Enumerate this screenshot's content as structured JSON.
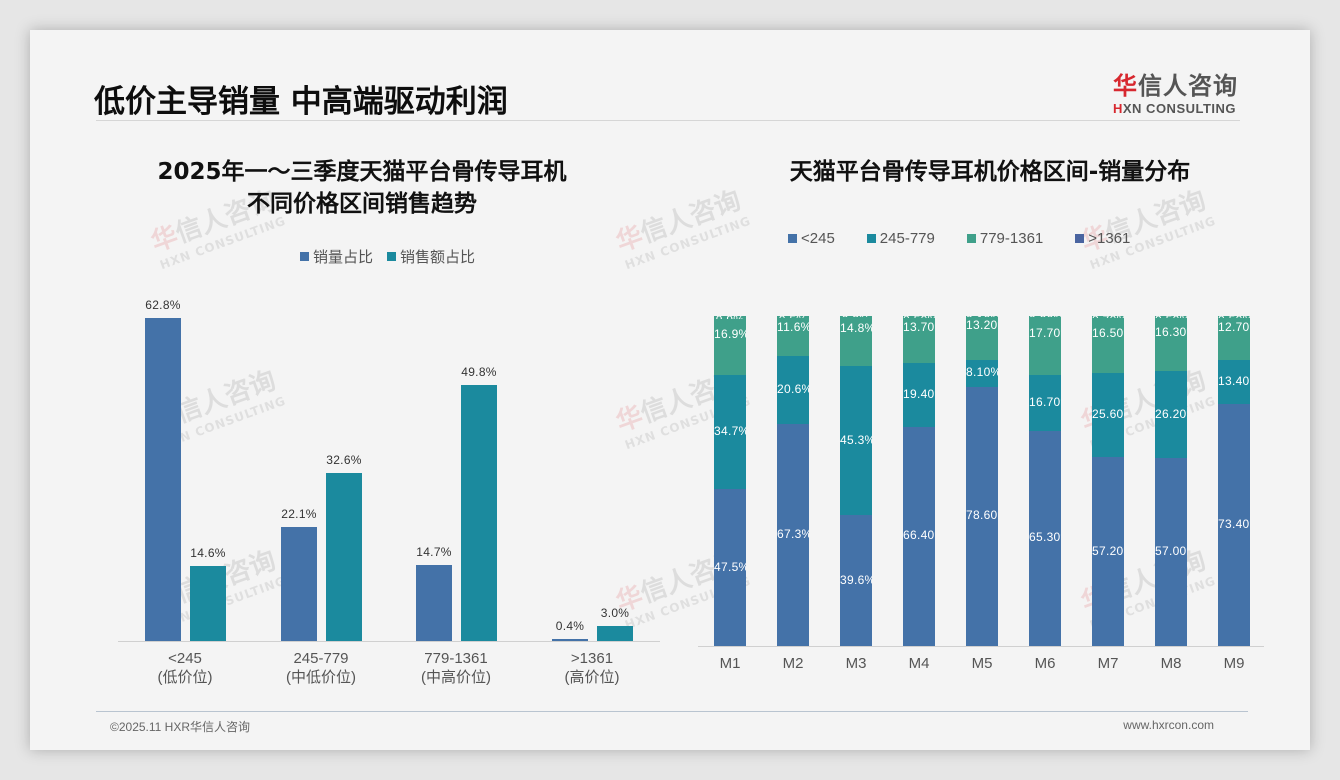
{
  "header": {
    "title": "低价主导销量 中高端驱动利润",
    "logo_cn_first": "华",
    "logo_cn_rest": "信人咨询",
    "logo_en_first": "H",
    "logo_en_rest": "XN CONSULTING"
  },
  "watermark": {
    "cn_first": "华",
    "cn_rest": "信人咨询",
    "en": "HXN CONSULTING"
  },
  "colors": {
    "volume": "#4472a8",
    "revenue": "#1b8a9e",
    "lt245": "#4472a8",
    "r245_779": "#1b8a9e",
    "r779_1361": "#3fa08a",
    "gt1361": "#4a64a0"
  },
  "left_chart": {
    "title_line1": "2025年一～三季度天猫平台骨传导耳机",
    "title_line2": "不同价格区间销售趋势",
    "legend": [
      "销量占比",
      "销售额占比"
    ]
  },
  "right_chart": {
    "title": "天猫平台骨传导耳机价格区间-销量分布",
    "legend": [
      "<245",
      "245-779",
      "779-1361",
      ">1361"
    ]
  },
  "chart_data": [
    {
      "type": "bar",
      "title": "2025年一～三季度天猫平台骨传导耳机不同价格区间销售趋势",
      "categories": [
        "<245 (低价位)",
        "245-779 (中低价位)",
        "779-1361 (中高价位)",
        ">1361 (高价位)"
      ],
      "category_lines": [
        [
          "<245",
          "(低价位)"
        ],
        [
          "245-779",
          "(中低价位)"
        ],
        [
          "779-1361",
          "(中高价位)"
        ],
        [
          ">1361",
          "(高价位)"
        ]
      ],
      "series": [
        {
          "name": "销量占比",
          "values": [
            62.8,
            22.1,
            14.7,
            0.4
          ],
          "labels": [
            "62.8%",
            "22.1%",
            "14.7%",
            "0.4%"
          ]
        },
        {
          "name": "销售额占比",
          "values": [
            14.6,
            32.6,
            49.8,
            3.0
          ],
          "labels": [
            "14.6%",
            "32.6%",
            "49.8%",
            "3.0%"
          ]
        }
      ],
      "xlabel": "",
      "ylabel": "",
      "ylim": [
        0,
        65
      ],
      "grid": false,
      "legend_position": "top"
    },
    {
      "type": "bar",
      "stacked": true,
      "title": "天猫平台骨传导耳机价格区间-销量分布",
      "categories": [
        "M1",
        "M2",
        "M3",
        "M4",
        "M5",
        "M6",
        "M7",
        "M8",
        "M9"
      ],
      "series": [
        {
          "name": "<245",
          "values": [
            47.5,
            67.3,
            39.6,
            66.4,
            78.6,
            65.3,
            57.2,
            57.0,
            73.4
          ],
          "labels": [
            "47.5%",
            "67.3%",
            "39.6%",
            "66.40%",
            "78.60%",
            "65.30%",
            "57.20%",
            "57.00%",
            "73.40%"
          ]
        },
        {
          "name": "245-779",
          "values": [
            34.7,
            20.6,
            45.3,
            19.4,
            8.1,
            16.7,
            25.6,
            26.2,
            13.4
          ],
          "labels": [
            "34.7%",
            "20.6%",
            "45.3%",
            "19.40%",
            "8.10%",
            "16.70%",
            "25.60%",
            "26.20%",
            "13.40%"
          ]
        },
        {
          "name": "779-1361",
          "values": [
            16.9,
            11.6,
            14.8,
            13.7,
            13.2,
            17.7,
            16.5,
            16.3,
            12.7
          ],
          "labels": [
            "16.9%",
            "11.6%",
            "14.8%",
            "13.70%",
            "13.20%",
            "17.70%",
            "16.50%",
            "16.30%",
            "12.70%"
          ]
        },
        {
          "name": ">1361",
          "values": [
            0.9,
            0.5,
            0.3,
            0.5,
            0.1,
            0.2,
            0.7,
            0.5,
            0.5
          ],
          "labels": [
            "0.9%",
            "0.5%",
            "0.3%",
            "0.50%",
            "0.10%",
            "0.20%",
            "0.70%",
            "0.50%",
            "0.50%"
          ]
        }
      ],
      "ylim": [
        0,
        100
      ],
      "grid": false,
      "legend_position": "top"
    }
  ],
  "footer": {
    "copyright": "©2025.11 HXR华信人咨询",
    "website": "www.hxrcon.com"
  }
}
